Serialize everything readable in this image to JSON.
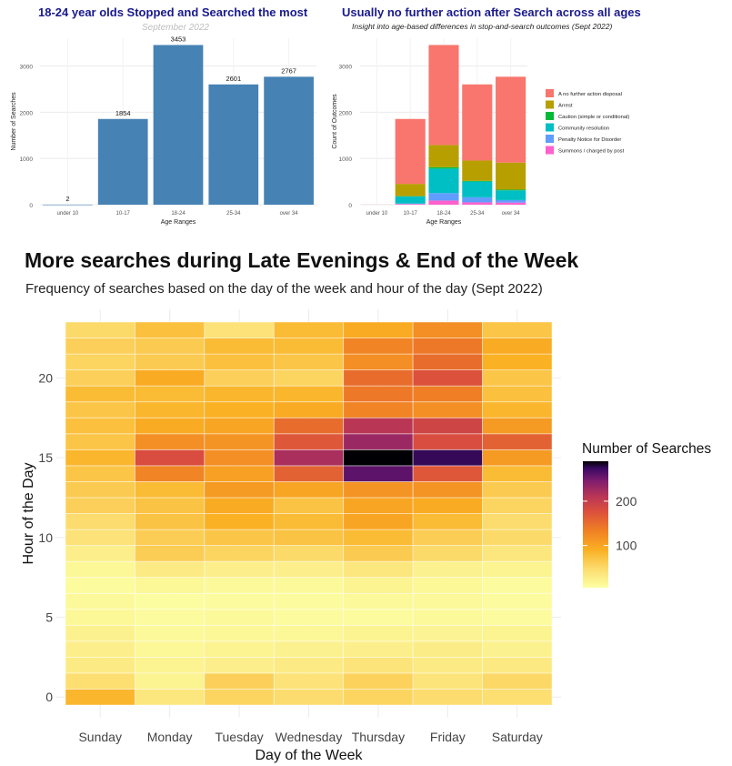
{
  "chart_data": [
    {
      "type": "bar",
      "title": "18-24 year olds Stopped and Searched the most",
      "subtitle": "September 2022",
      "xlabel": "Age Ranges",
      "ylabel": "Number of Searches",
      "categories": [
        "under 10",
        "10-17",
        "18-24",
        "25-34",
        "over 34"
      ],
      "values": [
        2,
        1854,
        3453,
        2601,
        2767
      ],
      "ylim": [
        0,
        3600
      ],
      "yticks": [
        0,
        1000,
        2000,
        3000
      ],
      "bar_color": "#4682b4",
      "grid": true
    },
    {
      "type": "bar",
      "stacked": true,
      "title": "Usually no further action after Search across all ages",
      "subtitle": "Insight into age-based differences in stop-and-search outcomes (Sept 2022)",
      "xlabel": "Age Ranges",
      "ylabel": "Count of Outcomes",
      "categories": [
        "under 10",
        "10-17",
        "18-24",
        "25-34",
        "over 34"
      ],
      "series": [
        {
          "name": "Summons / charged by post",
          "color": "#ff61cc",
          "values": [
            0,
            15,
            90,
            50,
            45
          ]
        },
        {
          "name": "Penalty Notice for Disorder",
          "color": "#619cff",
          "values": [
            0,
            10,
            160,
            110,
            55
          ]
        },
        {
          "name": "Community resolution",
          "color": "#00bfc4",
          "values": [
            0,
            155,
            530,
            340,
            210
          ]
        },
        {
          "name": "Caution (simple or conditional)",
          "color": "#00ba38",
          "values": [
            0,
            5,
            30,
            15,
            15
          ]
        },
        {
          "name": "Arrest",
          "color": "#b79f00",
          "values": [
            0,
            265,
            480,
            440,
            585
          ]
        },
        {
          "name": "A no further action disposal",
          "color": "#f8766d",
          "values": [
            2,
            1404,
            2163,
            1646,
            1857
          ]
        }
      ],
      "legend_order": [
        "A no further action disposal",
        "Arrest",
        "Caution (simple or conditional)",
        "Community resolution",
        "Penalty Notice for Disorder",
        "Summons / charged by post"
      ],
      "ylim": [
        0,
        3600
      ],
      "yticks": [
        0,
        1000,
        2000,
        3000
      ],
      "legend": "right",
      "grid": true
    },
    {
      "type": "heatmap",
      "title": "More searches during Late Evenings & End of the Week",
      "subtitle": "Frequency of searches based on the day of the week and hour of the day (Sept 2022)",
      "xlabel": "Day of the Week",
      "ylabel": "Hour of the Day",
      "x": [
        "Sunday",
        "Monday",
        "Tuesday",
        "Wednesday",
        "Thursday",
        "Friday",
        "Saturday"
      ],
      "y": [
        0,
        1,
        2,
        3,
        4,
        5,
        6,
        7,
        8,
        9,
        10,
        11,
        12,
        13,
        14,
        15,
        16,
        17,
        18,
        19,
        20,
        21,
        22,
        23
      ],
      "ytick_labels": [
        0,
        5,
        10,
        15,
        20
      ],
      "legend_title": "Number of Searches",
      "legend_ticks": [
        100,
        200
      ],
      "color_range": [
        5,
        290
      ],
      "values": [
        [
          85,
          35,
          55,
          48,
          55,
          48,
          45
        ],
        [
          45,
          20,
          60,
          40,
          58,
          38,
          52
        ],
        [
          30,
          20,
          25,
          30,
          38,
          30,
          32
        ],
        [
          25,
          15,
          20,
          22,
          25,
          28,
          22
        ],
        [
          22,
          12,
          15,
          15,
          20,
          18,
          20
        ],
        [
          15,
          10,
          12,
          10,
          10,
          12,
          10
        ],
        [
          12,
          8,
          10,
          10,
          12,
          12,
          10
        ],
        [
          10,
          15,
          12,
          12,
          20,
          15,
          10
        ],
        [
          15,
          30,
          25,
          25,
          35,
          22,
          20
        ],
        [
          25,
          62,
          55,
          50,
          65,
          50,
          35
        ],
        [
          40,
          62,
          70,
          72,
          80,
          62,
          50
        ],
        [
          48,
          72,
          90,
          80,
          100,
          80,
          48
        ],
        [
          60,
          72,
          95,
          72,
          100,
          95,
          55
        ],
        [
          65,
          80,
          110,
          100,
          115,
          115,
          65
        ],
        [
          70,
          130,
          105,
          160,
          260,
          170,
          80
        ],
        [
          85,
          180,
          120,
          220,
          290,
          275,
          110
        ],
        [
          70,
          120,
          115,
          170,
          230,
          180,
          160
        ],
        [
          75,
          95,
          100,
          150,
          210,
          190,
          110
        ],
        [
          70,
          85,
          90,
          95,
          130,
          120,
          85
        ],
        [
          80,
          80,
          85,
          85,
          140,
          135,
          75
        ],
        [
          60,
          95,
          60,
          55,
          150,
          175,
          70
        ],
        [
          55,
          65,
          75,
          70,
          120,
          150,
          90
        ],
        [
          60,
          65,
          80,
          80,
          130,
          140,
          95
        ],
        [
          50,
          75,
          40,
          80,
          95,
          120,
          70
        ]
      ]
    }
  ]
}
